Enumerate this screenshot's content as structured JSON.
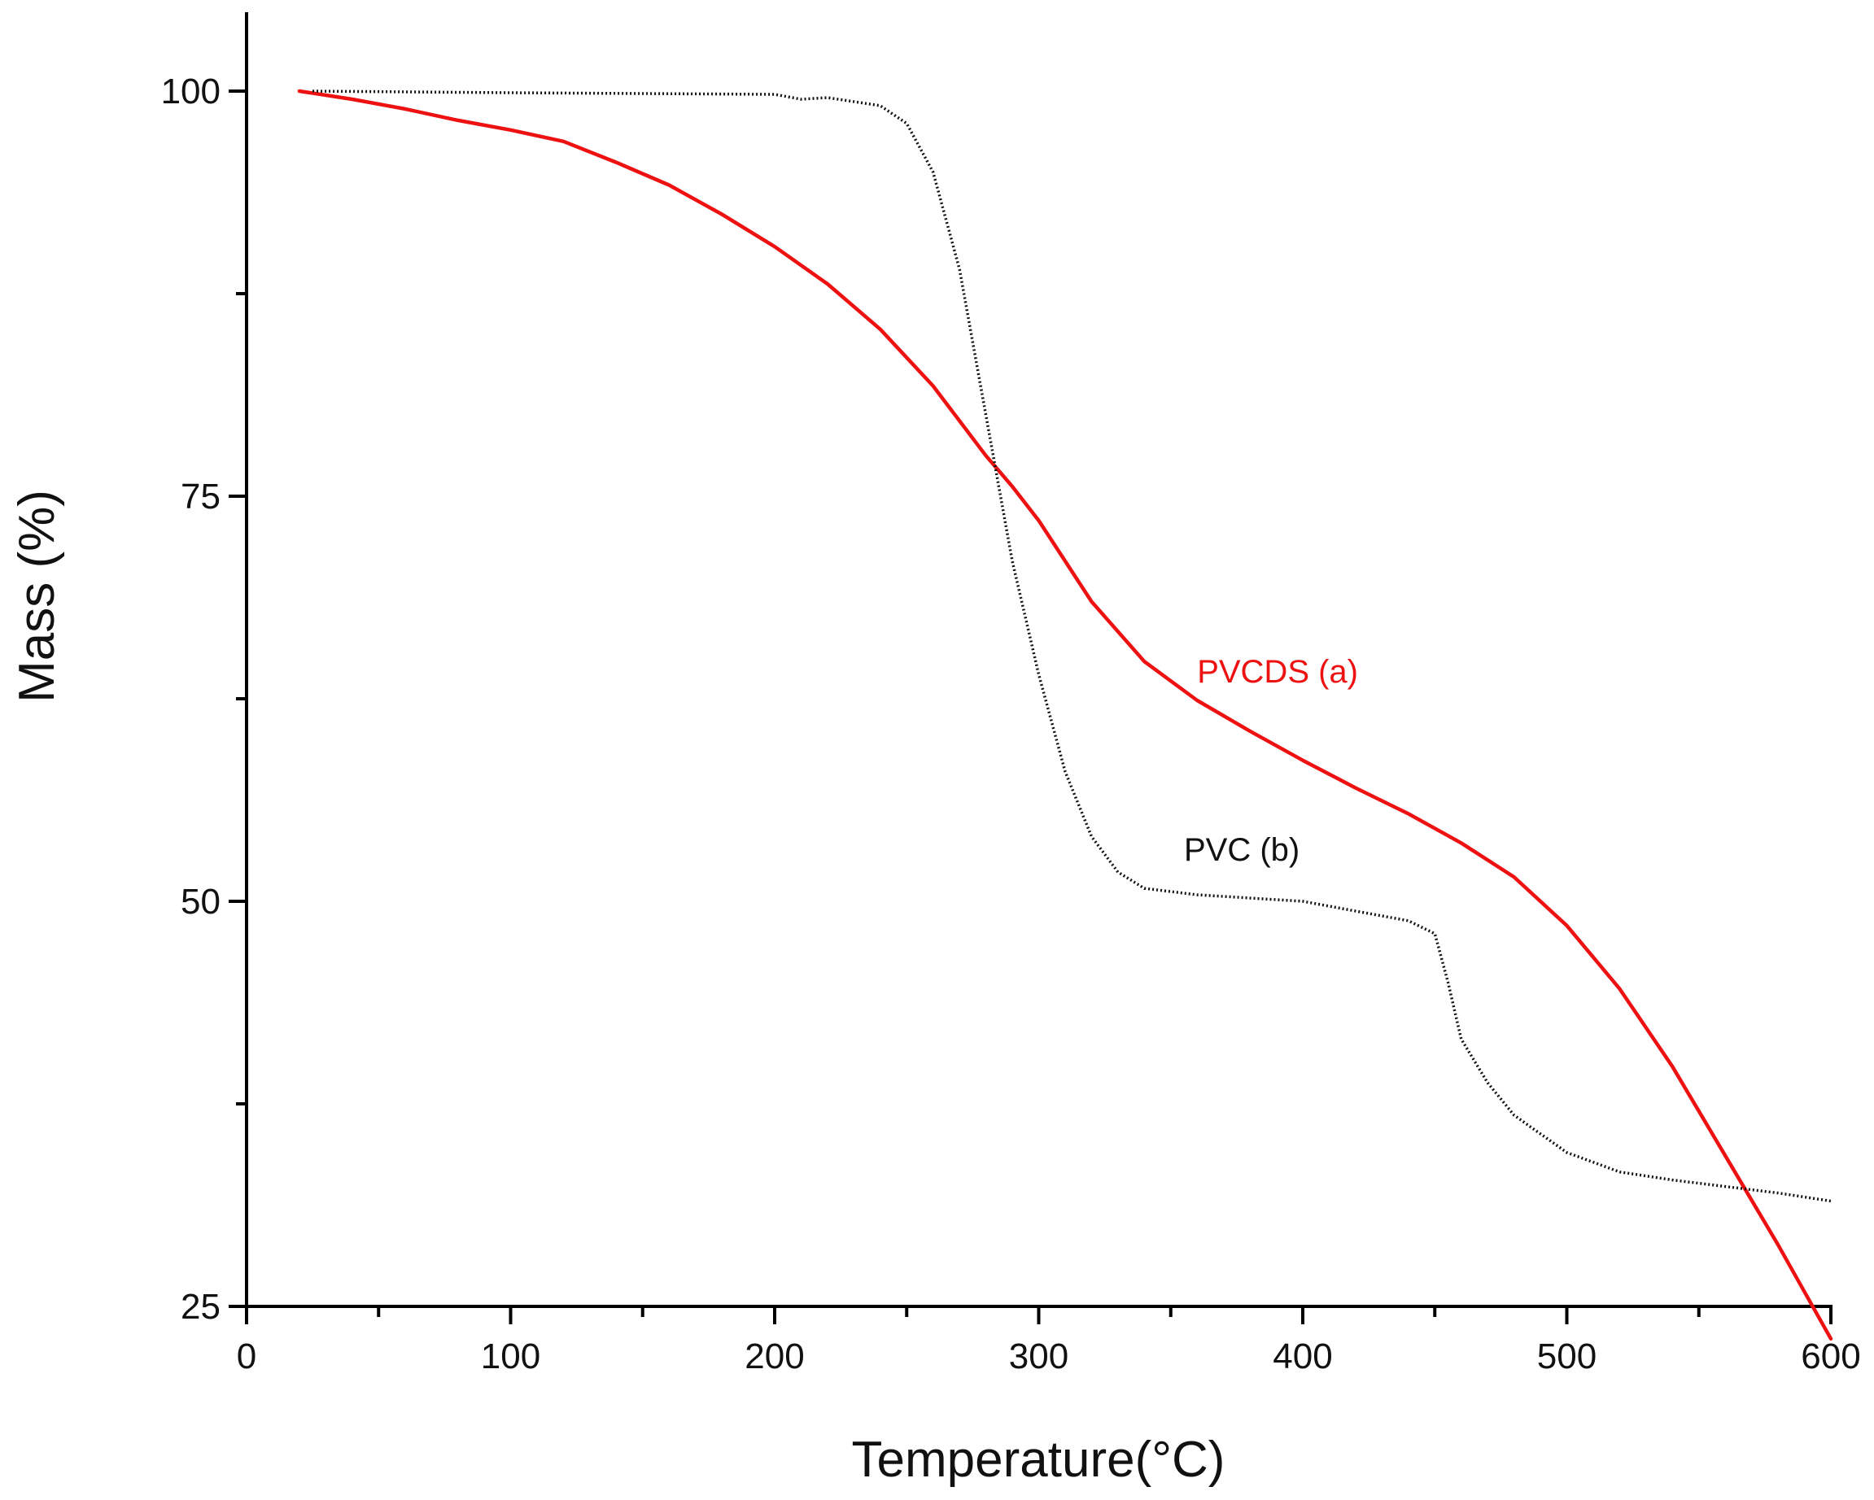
{
  "chart_data": {
    "type": "line",
    "xlabel": "Temperature(°C)",
    "ylabel": "Mass (%)",
    "xlim": [
      0,
      600
    ],
    "ylim": [
      25,
      105
    ],
    "x_ticks": [
      0,
      100,
      200,
      300,
      400,
      500,
      600
    ],
    "y_ticks": [
      25,
      50,
      75,
      100
    ],
    "x_minor_step": 50,
    "y_minor_step": 12.5,
    "grid": false,
    "legend": "none",
    "series": [
      {
        "name": "PVCDS (a)",
        "color": "#ee1111",
        "style": "solid",
        "points": [
          [
            20,
            100
          ],
          [
            40,
            99.5
          ],
          [
            60,
            98.9
          ],
          [
            80,
            98.2
          ],
          [
            100,
            97.6
          ],
          [
            120,
            96.9
          ],
          [
            140,
            95.6
          ],
          [
            160,
            94.2
          ],
          [
            180,
            92.4
          ],
          [
            200,
            90.4
          ],
          [
            220,
            88.1
          ],
          [
            240,
            85.3
          ],
          [
            260,
            81.8
          ],
          [
            280,
            77.5
          ],
          [
            290,
            75.6
          ],
          [
            300,
            73.5
          ],
          [
            320,
            68.5
          ],
          [
            340,
            64.8
          ],
          [
            360,
            62.4
          ],
          [
            380,
            60.5
          ],
          [
            400,
            58.7
          ],
          [
            420,
            57.0
          ],
          [
            440,
            55.4
          ],
          [
            460,
            53.6
          ],
          [
            480,
            51.5
          ],
          [
            500,
            48.5
          ],
          [
            520,
            44.6
          ],
          [
            540,
            39.8
          ],
          [
            560,
            34.3
          ],
          [
            580,
            28.8
          ],
          [
            600,
            23.0
          ]
        ]
      },
      {
        "name": "PVC (b)",
        "color": "#111111",
        "style": "dotted",
        "points": [
          [
            25,
            100
          ],
          [
            100,
            99.9
          ],
          [
            200,
            99.8
          ],
          [
            210,
            99.5
          ],
          [
            220,
            99.6
          ],
          [
            240,
            99.1
          ],
          [
            250,
            98.0
          ],
          [
            260,
            95.0
          ],
          [
            270,
            89.0
          ],
          [
            280,
            80.0
          ],
          [
            290,
            71.0
          ],
          [
            300,
            64.0
          ],
          [
            310,
            58.0
          ],
          [
            320,
            54.0
          ],
          [
            330,
            51.8
          ],
          [
            340,
            50.8
          ],
          [
            360,
            50.4
          ],
          [
            400,
            50.0
          ],
          [
            420,
            49.4
          ],
          [
            440,
            48.8
          ],
          [
            450,
            48.0
          ],
          [
            455,
            45.0
          ],
          [
            460,
            41.5
          ],
          [
            470,
            38.8
          ],
          [
            480,
            36.8
          ],
          [
            500,
            34.5
          ],
          [
            520,
            33.3
          ],
          [
            540,
            32.8
          ],
          [
            560,
            32.4
          ],
          [
            580,
            32.0
          ],
          [
            600,
            31.5
          ]
        ]
      }
    ],
    "annotations": [
      {
        "text": "PVCDS (a)",
        "x": 360,
        "y": 63.5,
        "color": "#ee1111"
      },
      {
        "text": "PVC (b)",
        "x": 355,
        "y": 52.5,
        "color": "#111111"
      }
    ]
  }
}
